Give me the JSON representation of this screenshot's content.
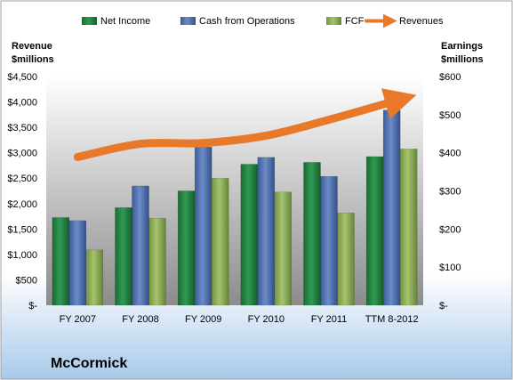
{
  "company": "McCormick",
  "colors": {
    "net_income": "#1e7a3c",
    "cash_ops": "#4a6cb0",
    "fcf": "#8fb055",
    "revenues": "#e8782a"
  },
  "chart_data": {
    "type": "bar",
    "categories": [
      "FY 2007",
      "FY 2008",
      "FY 2009",
      "FY 2010",
      "FY 2011",
      "TTM 8-2012"
    ],
    "left_axis": {
      "label_line1": "Revenue",
      "label_line2": "$millions",
      "ylim": [
        0,
        4500
      ],
      "ticks": [
        0,
        500,
        1000,
        1500,
        2000,
        2500,
        3000,
        3500,
        4000,
        4500
      ],
      "tick_labels": [
        "$-",
        "$500",
        "$1,000",
        "$1,500",
        "$2,000",
        "$2,500",
        "$3,000",
        "$3,500",
        "$4,000",
        "$4,500"
      ]
    },
    "right_axis": {
      "label_line1": "Earnings",
      "label_line2": "$millions",
      "ylim": [
        0,
        600
      ],
      "ticks": [
        0,
        100,
        200,
        300,
        400,
        500,
        600
      ],
      "tick_labels": [
        "$-",
        "$100",
        "$200",
        "$300",
        "$400",
        "$500",
        "$600"
      ]
    },
    "series": [
      {
        "name": "Net Income",
        "type": "bar",
        "axis": "right",
        "values": [
          230,
          256,
          300,
          370,
          375,
          390
        ]
      },
      {
        "name": "Cash from Operations",
        "type": "bar",
        "axis": "right",
        "values": [
          222,
          313,
          415,
          388,
          338,
          512
        ]
      },
      {
        "name": "FCF",
        "type": "bar",
        "axis": "right",
        "values": [
          145,
          228,
          333,
          297,
          242,
          410
        ]
      },
      {
        "name": "Revenues",
        "type": "line",
        "axis": "left",
        "values": [
          2916,
          3177,
          3192,
          3337,
          3650,
          4000
        ]
      }
    ],
    "legend_position": "top",
    "grid": false
  }
}
